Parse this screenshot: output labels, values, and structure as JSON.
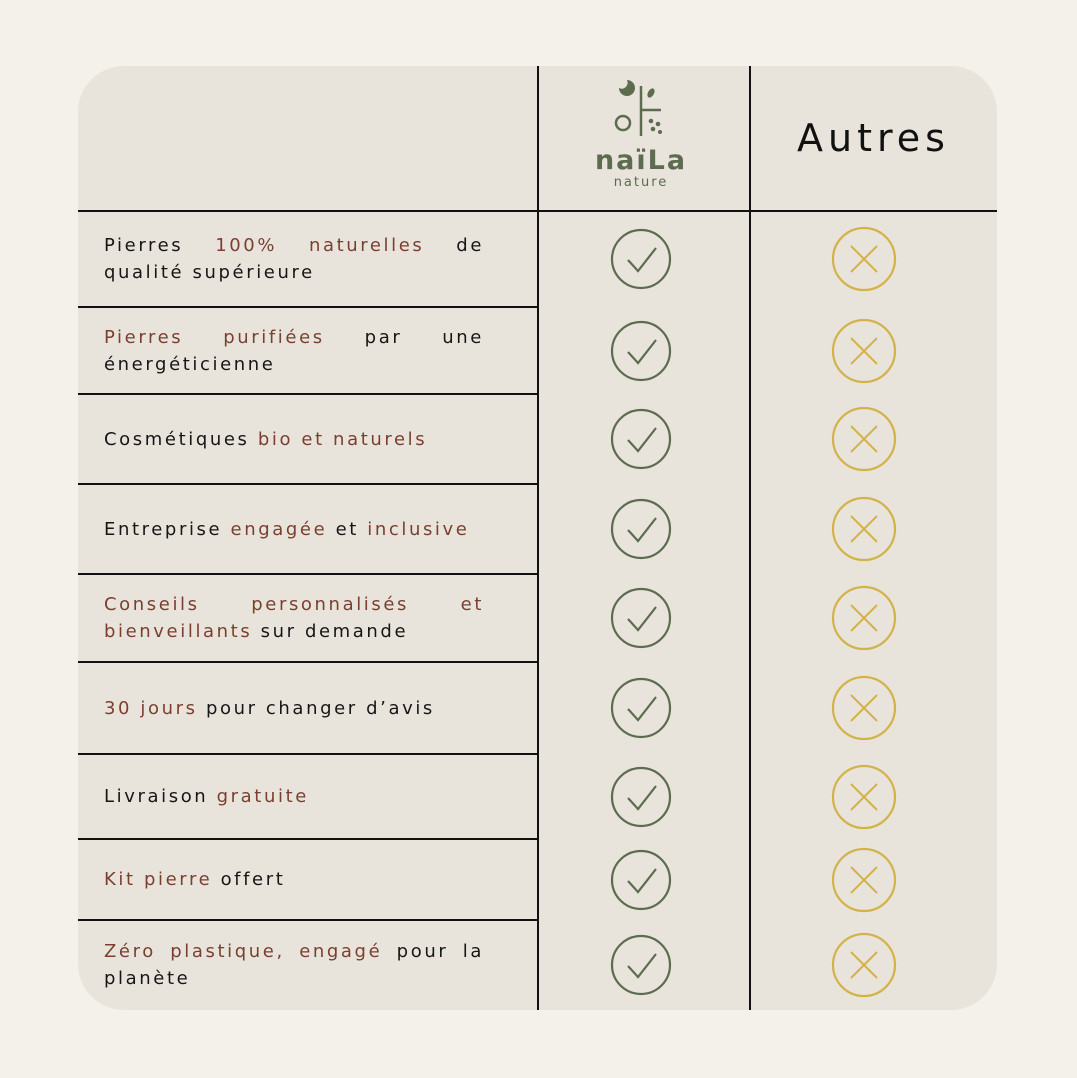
{
  "header": {
    "logo": {
      "name": "naïLa",
      "tagline": "nature"
    },
    "other_column": "Autres"
  },
  "table": {
    "rows": [
      {
        "parts": [
          {
            "text": "Pierres ",
            "highlight": false
          },
          {
            "text": "100% naturelles",
            "highlight": true
          },
          {
            "text": " de qualité supérieure",
            "highlight": false
          }
        ]
      },
      {
        "parts": [
          {
            "text": "Pierres purifiées",
            "highlight": true
          },
          {
            "text": " par une énergéticienne",
            "highlight": false
          }
        ]
      },
      {
        "parts": [
          {
            "text": "Cosmétiques ",
            "highlight": false
          },
          {
            "text": "bio et naturels",
            "highlight": true
          }
        ]
      },
      {
        "parts": [
          {
            "text": "Entreprise ",
            "highlight": false
          },
          {
            "text": "engagée",
            "highlight": true
          },
          {
            "text": " et ",
            "highlight": false
          },
          {
            "text": "inclusive",
            "highlight": true
          }
        ]
      },
      {
        "parts": [
          {
            "text": "Conseils personnalisés et bienveillants",
            "highlight": true
          },
          {
            "text": " sur demande",
            "highlight": false
          }
        ]
      },
      {
        "parts": [
          {
            "text": "30 jours",
            "highlight": true
          },
          {
            "text": " pour changer d’avis",
            "highlight": false
          }
        ]
      },
      {
        "parts": [
          {
            "text": "Livraison ",
            "highlight": false
          },
          {
            "text": "gratuite",
            "highlight": true
          }
        ]
      },
      {
        "parts": [
          {
            "text": "Kit pierre",
            "highlight": true
          },
          {
            "text": " offert",
            "highlight": false
          }
        ]
      },
      {
        "parts": [
          {
            "text": "Zéro plastique, engagé",
            "highlight": true
          },
          {
            "text": " pour la planète",
            "highlight": false
          }
        ]
      }
    ]
  }
}
